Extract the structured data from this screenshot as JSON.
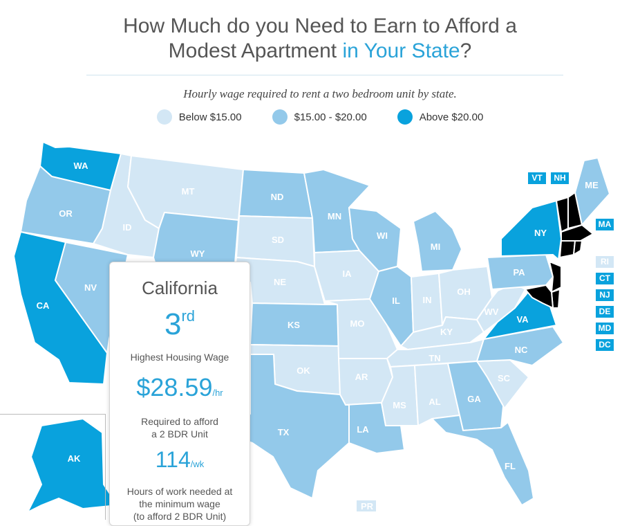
{
  "title": {
    "line1": "How Much do you Need to Earn to Afford a",
    "line2_prefix": "Modest Apartment ",
    "line2_highlight": "in Your State",
    "line2_suffix": "?"
  },
  "subtitle": "Hourly wage required to rent a two bedroom unit by state.",
  "legend": [
    {
      "label": "Below $15.00",
      "color": "#d3e7f5"
    },
    {
      "label": "$15.00 - $20.00",
      "color": "#93c9ea"
    },
    {
      "label": "Above $20.00",
      "color": "#09a2dd"
    }
  ],
  "colors": {
    "low": "#d3e7f5",
    "mid": "#93c9ea",
    "high": "#09a2dd"
  },
  "states": {
    "WA": {
      "label": "WA",
      "tier": "high"
    },
    "OR": {
      "label": "OR",
      "tier": "mid"
    },
    "CA": {
      "label": "CA",
      "tier": "high"
    },
    "NV": {
      "label": "NV",
      "tier": "mid"
    },
    "ID": {
      "label": "ID",
      "tier": "low"
    },
    "MT": {
      "label": "MT",
      "tier": "low"
    },
    "WY": {
      "label": "WY",
      "tier": "mid"
    },
    "ND": {
      "label": "ND",
      "tier": "mid"
    },
    "SD": {
      "label": "SD",
      "tier": "low"
    },
    "NE": {
      "label": "NE",
      "tier": "low"
    },
    "KS": {
      "label": "KS",
      "tier": "mid"
    },
    "OK": {
      "label": "OK",
      "tier": "low"
    },
    "TX": {
      "label": "TX",
      "tier": "mid"
    },
    "MN": {
      "label": "MN",
      "tier": "mid"
    },
    "IA": {
      "label": "IA",
      "tier": "low"
    },
    "MO": {
      "label": "MO",
      "tier": "low"
    },
    "AR": {
      "label": "AR",
      "tier": "low"
    },
    "LA": {
      "label": "LA",
      "tier": "mid"
    },
    "WI": {
      "label": "WI",
      "tier": "mid"
    },
    "IL": {
      "label": "IL",
      "tier": "mid"
    },
    "MI": {
      "label": "MI",
      "tier": "mid"
    },
    "IN": {
      "label": "IN",
      "tier": "low"
    },
    "OH": {
      "label": "OH",
      "tier": "low"
    },
    "KY": {
      "label": "KY",
      "tier": "low"
    },
    "TN": {
      "label": "TN",
      "tier": "low"
    },
    "MS": {
      "label": "MS",
      "tier": "low"
    },
    "AL": {
      "label": "AL",
      "tier": "low"
    },
    "GA": {
      "label": "GA",
      "tier": "mid"
    },
    "FL": {
      "label": "FL",
      "tier": "mid"
    },
    "SC": {
      "label": "SC",
      "tier": "low"
    },
    "NC": {
      "label": "NC",
      "tier": "mid"
    },
    "VA": {
      "label": "VA",
      "tier": "high"
    },
    "WV": {
      "label": "WV",
      "tier": "low"
    },
    "PA": {
      "label": "PA",
      "tier": "mid"
    },
    "NY": {
      "label": "NY",
      "tier": "high"
    },
    "ME": {
      "label": "ME",
      "tier": "mid"
    },
    "AK": {
      "label": "AK",
      "tier": "high"
    },
    "PR": {
      "label": "PR",
      "tier": "low"
    }
  },
  "small_states": [
    {
      "label": "VT",
      "tier": "high"
    },
    {
      "label": "NH",
      "tier": "high"
    },
    {
      "label": "MA",
      "tier": "high"
    },
    {
      "label": "RI",
      "tier": "low"
    },
    {
      "label": "CT",
      "tier": "high"
    },
    {
      "label": "NJ",
      "tier": "high"
    },
    {
      "label": "DE",
      "tier": "high"
    },
    {
      "label": "MD",
      "tier": "high"
    },
    {
      "label": "DC",
      "tier": "high"
    }
  ],
  "tooltip": {
    "state": "California",
    "rank_number": "3",
    "rank_suffix": "rd",
    "rank_caption": "Highest Housing Wage",
    "wage": "$28.59",
    "wage_unit": "/hr",
    "wage_caption_1": "Required to afford",
    "wage_caption_2": "a 2 BDR Unit",
    "hours": "114",
    "hours_unit": "/wk",
    "hours_caption_1": "Hours of work needed at",
    "hours_caption_2": "the minimum wage",
    "hours_caption_3": "(to afford 2 BDR Unit)"
  }
}
